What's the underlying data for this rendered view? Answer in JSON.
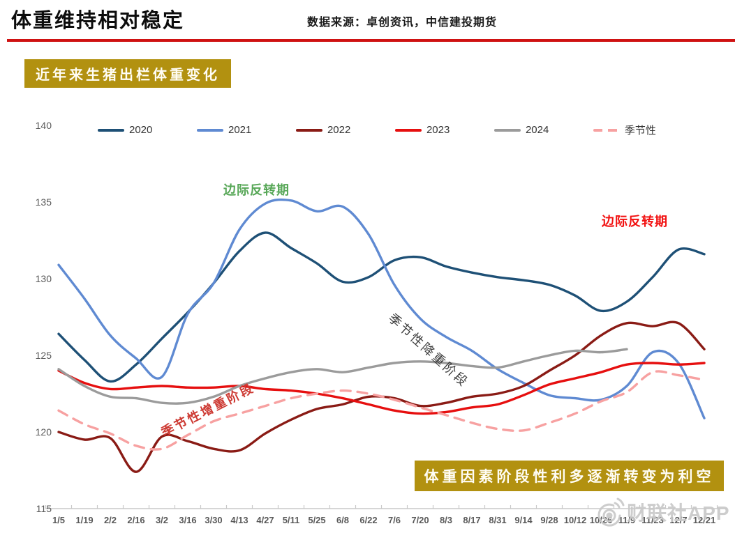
{
  "header": {
    "title": "体重维持相对稳定",
    "source": "数据来源：卓创资讯，中信建投期货"
  },
  "badges": {
    "conclusion": "体重因素阶段性利多逐渐转变为利空"
  },
  "annotations": {
    "green_reversal": "边际反转期",
    "red_reversal": "边际反转期",
    "seasonal_down": "季节性降重阶段",
    "seasonal_up": "季节性增重阶段"
  },
  "watermark": {
    "label": "财联社APP",
    "logo": "weibo-eye-icon"
  },
  "colors": {
    "header_rule": "#cf1212",
    "badge_gold": "#b29110",
    "annotation_green": "#57a757",
    "annotation_red": "#f21111",
    "axis_text": "#595959",
    "axis_line": "#c9c9c9",
    "watermark": "#c8c8c8"
  },
  "chart_data": {
    "type": "line",
    "title": "近年来生猪出栏体重变化",
    "xlabel": "",
    "ylabel": "",
    "ylim": [
      115,
      140
    ],
    "yticks": [
      140,
      135,
      130,
      125,
      120,
      115
    ],
    "grid": false,
    "legend_position": "top",
    "categories": [
      "1/5",
      "1/19",
      "2/2",
      "2/16",
      "3/2",
      "3/16",
      "3/30",
      "4/13",
      "4/27",
      "5/11",
      "5/25",
      "6/8",
      "6/22",
      "7/6",
      "7/20",
      "8/3",
      "8/17",
      "8/31",
      "9/14",
      "9/28",
      "10/12",
      "10/26",
      "11/9",
      "11/23",
      "12/7",
      "12/21"
    ],
    "series": [
      {
        "name": "2020",
        "color": "#1e5076",
        "dash": false,
        "values": [
          126.4,
          124.7,
          123.3,
          124.4,
          126.1,
          127.8,
          129.7,
          131.8,
          133.0,
          132.0,
          131.0,
          129.8,
          130.1,
          131.2,
          131.4,
          130.8,
          130.4,
          130.1,
          129.9,
          129.6,
          128.9,
          127.9,
          128.5,
          130.1,
          131.9,
          131.6
        ]
      },
      {
        "name": "2021",
        "color": "#5f8ad2",
        "dash": false,
        "values": [
          130.9,
          128.7,
          126.3,
          124.8,
          123.6,
          127.7,
          129.7,
          133.2,
          134.9,
          135.1,
          134.4,
          134.7,
          132.9,
          129.6,
          127.4,
          126.2,
          125.3,
          124.1,
          123.2,
          122.4,
          122.2,
          122.1,
          123.0,
          125.2,
          124.5,
          120.9
        ]
      },
      {
        "name": "2022",
        "color": "#8a1b15",
        "dash": false,
        "values": [
          120.0,
          119.5,
          119.6,
          117.4,
          119.7,
          119.4,
          118.9,
          118.8,
          119.9,
          120.8,
          121.5,
          121.8,
          122.3,
          122.2,
          121.7,
          121.9,
          122.3,
          122.5,
          123.0,
          124.0,
          125.0,
          126.3,
          127.1,
          126.9,
          127.1,
          125.4
        ]
      },
      {
        "name": "2023",
        "color": "#e60f0f",
        "dash": false,
        "values": [
          124.0,
          123.2,
          122.8,
          122.9,
          123.0,
          122.9,
          122.9,
          123.0,
          122.8,
          122.7,
          122.5,
          122.2,
          121.8,
          121.4,
          121.2,
          121.3,
          121.6,
          121.8,
          122.4,
          123.1,
          123.5,
          123.9,
          124.4,
          124.5,
          124.4,
          124.5
        ]
      },
      {
        "name": "2024",
        "color": "#9b9b9b",
        "dash": false,
        "values": [
          124.1,
          123.0,
          122.3,
          122.2,
          121.9,
          121.9,
          122.3,
          123.0,
          123.5,
          123.9,
          124.1,
          123.9,
          124.2,
          124.5,
          124.6,
          124.5,
          124.3,
          124.2,
          124.6,
          125.0,
          125.3,
          125.2,
          125.4,
          null,
          null,
          null
        ]
      },
      {
        "name": "季节性",
        "color": "#f7a1a1",
        "dash": true,
        "values": [
          121.4,
          120.5,
          119.9,
          119.1,
          118.9,
          119.8,
          120.7,
          121.2,
          121.7,
          122.2,
          122.5,
          122.7,
          122.5,
          122.1,
          121.6,
          121.1,
          120.6,
          120.2,
          120.1,
          120.6,
          121.2,
          122.0,
          122.6,
          123.9,
          123.7,
          123.4
        ]
      }
    ]
  }
}
